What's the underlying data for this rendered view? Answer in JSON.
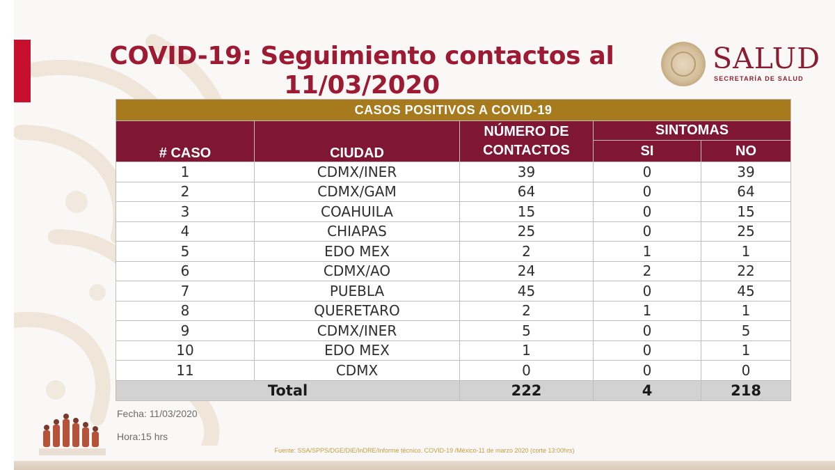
{
  "title": "COVID-19: Seguimiento contactos al 11/03/2020",
  "logo": {
    "name": "SALUD",
    "subtitle": "SECRETARÍA DE SALUD"
  },
  "table": {
    "banner": "CASOS POSITIVOS A COVID-19",
    "headers": {
      "caso": "# CASO",
      "ciudad": "CIUDAD",
      "contactos": "NÚMERO DE CONTACTOS",
      "sintomas": "SINTOMAS",
      "si": "SI",
      "no": "NO"
    },
    "rows": [
      {
        "caso": "1",
        "ciudad": "CDMX/INER",
        "contactos": "39",
        "si": "0",
        "no": "39"
      },
      {
        "caso": "2",
        "ciudad": "CDMX/GAM",
        "contactos": "64",
        "si": "0",
        "no": "64"
      },
      {
        "caso": "3",
        "ciudad": "COAHUILA",
        "contactos": "15",
        "si": "0",
        "no": "15"
      },
      {
        "caso": "4",
        "ciudad": "CHIAPAS",
        "contactos": "25",
        "si": "0",
        "no": "25"
      },
      {
        "caso": "5",
        "ciudad": "EDO MEX",
        "contactos": "2",
        "si": "1",
        "no": "1"
      },
      {
        "caso": "6",
        "ciudad": "CDMX/AO",
        "contactos": "24",
        "si": "2",
        "no": "22"
      },
      {
        "caso": "7",
        "ciudad": "PUEBLA",
        "contactos": "45",
        "si": "0",
        "no": "45"
      },
      {
        "caso": "8",
        "ciudad": "QUERETARO",
        "contactos": "2",
        "si": "1",
        "no": "1"
      },
      {
        "caso": "9",
        "ciudad": "CDMX/INER",
        "contactos": "5",
        "si": "0",
        "no": "5"
      },
      {
        "caso": "10",
        "ciudad": "EDO MEX",
        "contactos": "1",
        "si": "0",
        "no": "1"
      },
      {
        "caso": "11",
        "ciudad": "CDMX",
        "contactos": "0",
        "si": "0",
        "no": "0"
      }
    ],
    "total": {
      "label": "Total",
      "contactos": "222",
      "si": "4",
      "no": "218"
    }
  },
  "fecha": "Fecha: 11/03/2020",
  "hora": "Hora:15 hrs",
  "source": "Fuente: SSA/SPPS/DGE/DIE/InDRE/Informe técnico. COVID-19 /México-11 de marzo 2020 (corte 13:00hrs)",
  "colors": {
    "title": "#9d1b32",
    "banner": "#a87a1e",
    "header": "#7f1634",
    "total_row": "#d2d2d2"
  }
}
